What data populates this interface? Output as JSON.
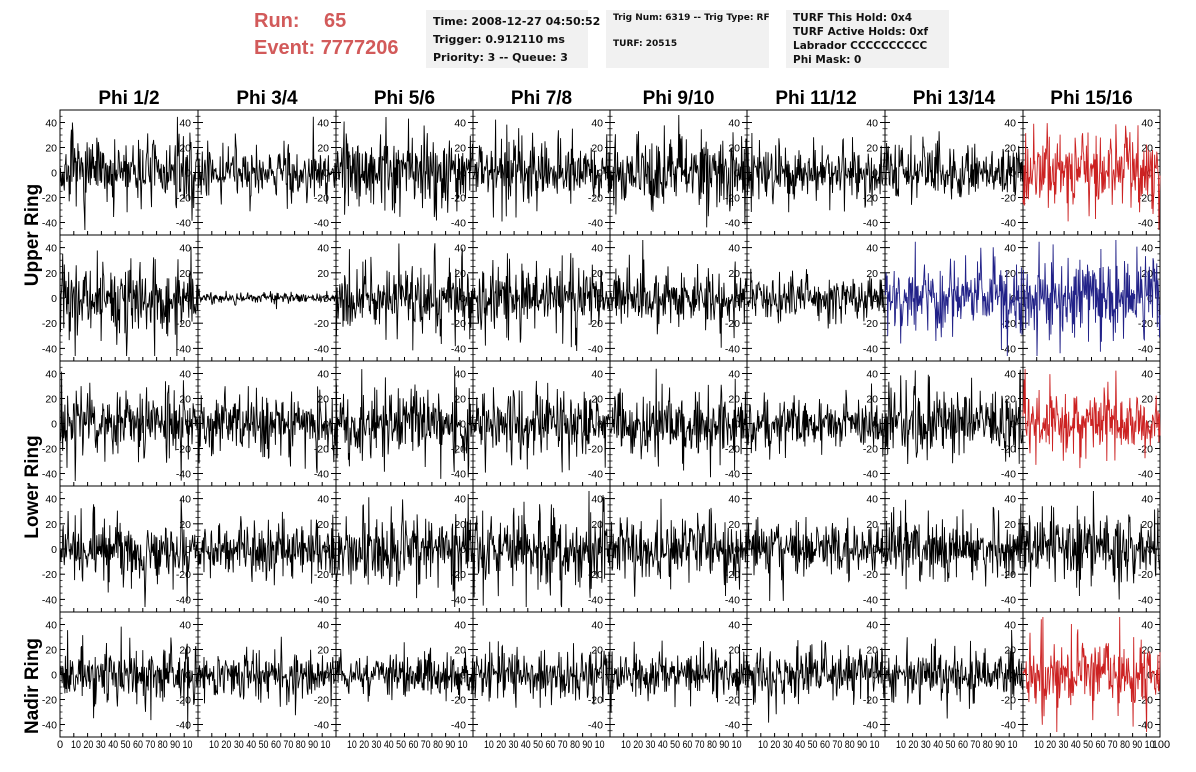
{
  "header": {
    "run_label": "Run:",
    "run_value": "65",
    "event_label": "Event:",
    "event_value": "7777206",
    "time_line": "Time: 2008-12-27 04:50:52",
    "trigger_line": "Trigger: 0.912110 ms",
    "priority_line": "Priority: 3 -- Queue: 3",
    "trig_line": "Trig Num: 6319 -- Trig Type: RF",
    "turf_line": "TURF: 20515",
    "hold_line": "TURF This Hold: 0x4",
    "active_holds_line": "TURF Active Holds: 0xf",
    "labrador_line": "Labrador CCCCCCCCCC",
    "phi_mask_line": "Phi Mask: 0"
  },
  "colors": {
    "header_red": "#d25a5a",
    "trace_default": "#000000",
    "trace_red": "#cc2222",
    "trace_blue": "#222288",
    "box_background": "#f1f1f1"
  },
  "chart_data": {
    "type": "line",
    "columns": [
      "Phi 1/2",
      "Phi 3/4",
      "Phi 5/6",
      "Phi 7/8",
      "Phi 9/10",
      "Phi 11/12",
      "Phi 13/14",
      "Phi 15/16"
    ],
    "rows": [
      "Upper Ring",
      "Upper Ring",
      "Lower Ring",
      "Lower Ring",
      "Nadir Ring"
    ],
    "ring_labels": [
      "Upper Ring",
      "Lower Ring",
      "Nadir Ring"
    ],
    "xlim": [
      0,
      100
    ],
    "ylim": [
      -50,
      50
    ],
    "x_ticks": [
      0,
      10,
      20,
      30,
      40,
      50,
      60,
      70,
      80,
      90,
      100
    ],
    "y_ticks": [
      -40,
      -20,
      0,
      20,
      40
    ],
    "x_tick_label_text": "10 20 30 40 50 60 70 80 90 10",
    "x_first_label": "0",
    "x_last_label": "100",
    "n_points": 256,
    "panels": [
      {
        "row": 0,
        "col": 0,
        "amp": 12,
        "color": "black"
      },
      {
        "row": 0,
        "col": 1,
        "amp": 9,
        "color": "black"
      },
      {
        "row": 0,
        "col": 2,
        "amp": 13,
        "color": "black"
      },
      {
        "row": 0,
        "col": 3,
        "amp": 12,
        "color": "black"
      },
      {
        "row": 0,
        "col": 4,
        "amp": 13,
        "color": "black"
      },
      {
        "row": 0,
        "col": 5,
        "amp": 9,
        "color": "black"
      },
      {
        "row": 0,
        "col": 6,
        "amp": 10,
        "color": "black"
      },
      {
        "row": 0,
        "col": 7,
        "amp": 15,
        "color": "red"
      },
      {
        "row": 1,
        "col": 0,
        "amp": 13,
        "color": "black"
      },
      {
        "row": 1,
        "col": 1,
        "amp": 2,
        "color": "black"
      },
      {
        "row": 1,
        "col": 2,
        "amp": 13,
        "color": "black"
      },
      {
        "row": 1,
        "col": 3,
        "amp": 13,
        "color": "black"
      },
      {
        "row": 1,
        "col": 4,
        "amp": 10,
        "color": "black"
      },
      {
        "row": 1,
        "col": 5,
        "amp": 8,
        "color": "black"
      },
      {
        "row": 1,
        "col": 6,
        "amp": 12,
        "color": "blue"
      },
      {
        "row": 1,
        "col": 7,
        "amp": 15,
        "color": "blue"
      },
      {
        "row": 2,
        "col": 0,
        "amp": 12,
        "color": "black"
      },
      {
        "row": 2,
        "col": 1,
        "amp": 11,
        "color": "black"
      },
      {
        "row": 2,
        "col": 2,
        "amp": 13,
        "color": "black"
      },
      {
        "row": 2,
        "col": 3,
        "amp": 12,
        "color": "black"
      },
      {
        "row": 2,
        "col": 4,
        "amp": 12,
        "color": "black"
      },
      {
        "row": 2,
        "col": 5,
        "amp": 9,
        "color": "black"
      },
      {
        "row": 2,
        "col": 6,
        "amp": 12,
        "color": "black"
      },
      {
        "row": 2,
        "col": 7,
        "amp": 12,
        "color": "red"
      },
      {
        "row": 3,
        "col": 0,
        "amp": 12,
        "color": "black"
      },
      {
        "row": 3,
        "col": 1,
        "amp": 10,
        "color": "black"
      },
      {
        "row": 3,
        "col": 2,
        "amp": 13,
        "color": "black"
      },
      {
        "row": 3,
        "col": 3,
        "amp": 13,
        "color": "black"
      },
      {
        "row": 3,
        "col": 4,
        "amp": 12,
        "color": "black"
      },
      {
        "row": 3,
        "col": 5,
        "amp": 10,
        "color": "black"
      },
      {
        "row": 3,
        "col": 6,
        "amp": 11,
        "color": "black"
      },
      {
        "row": 3,
        "col": 7,
        "amp": 12,
        "color": "black"
      },
      {
        "row": 4,
        "col": 0,
        "amp": 11,
        "color": "black"
      },
      {
        "row": 4,
        "col": 1,
        "amp": 8,
        "color": "black"
      },
      {
        "row": 4,
        "col": 2,
        "amp": 8,
        "color": "black"
      },
      {
        "row": 4,
        "col": 3,
        "amp": 9,
        "color": "black"
      },
      {
        "row": 4,
        "col": 4,
        "amp": 8,
        "color": "black"
      },
      {
        "row": 4,
        "col": 5,
        "amp": 10,
        "color": "black"
      },
      {
        "row": 4,
        "col": 6,
        "amp": 9,
        "color": "black"
      },
      {
        "row": 4,
        "col": 7,
        "amp": 14,
        "color": "red"
      }
    ]
  }
}
